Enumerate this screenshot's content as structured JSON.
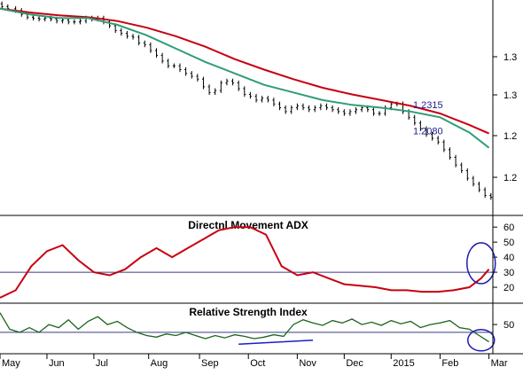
{
  "chart_data": [
    {
      "type": "line",
      "panel": "price",
      "title": "",
      "y_axis": {
        "ticks": [
          "1.3",
          "1.3",
          "1.2",
          "1.2"
        ],
        "range": [
          1.12,
          1.345
        ]
      },
      "series": [
        {
          "kind": "candlestick",
          "color": "#000000",
          "x": [
            1,
            4,
            8,
            11,
            14,
            17,
            20,
            23,
            26,
            29,
            32,
            35,
            38,
            41,
            44,
            47,
            50,
            53,
            56,
            59,
            62,
            65,
            68,
            71,
            74,
            77,
            80,
            83,
            86,
            89,
            92,
            95,
            98,
            101,
            104,
            107,
            110,
            113,
            116,
            119,
            122,
            125,
            128,
            131,
            134,
            137,
            140,
            143,
            146,
            149,
            152,
            155,
            158,
            161,
            164,
            167,
            170,
            173,
            176,
            179,
            182,
            185,
            188,
            191,
            194,
            197,
            200,
            203,
            206,
            209,
            212,
            215,
            218,
            221,
            224,
            227,
            230,
            233,
            236,
            239,
            242,
            245,
            248,
            251
          ],
          "close": [
            1.338,
            1.336,
            1.334,
            1.33,
            1.327,
            1.326,
            1.325,
            1.326,
            1.325,
            1.323,
            1.324,
            1.322,
            1.322,
            1.323,
            1.326,
            1.325,
            1.326,
            1.322,
            1.318,
            1.313,
            1.31,
            1.307,
            1.306,
            1.3,
            1.298,
            1.292,
            1.287,
            1.281,
            1.276,
            1.276,
            1.272,
            1.268,
            1.265,
            1.262,
            1.254,
            1.248,
            1.25,
            1.258,
            1.26,
            1.258,
            1.252,
            1.246,
            1.244,
            1.24,
            1.242,
            1.24,
            1.236,
            1.232,
            1.228,
            1.232,
            1.234,
            1.232,
            1.23,
            1.232,
            1.234,
            1.232,
            1.23,
            1.228,
            1.226,
            1.228,
            1.23,
            1.232,
            1.23,
            1.226,
            1.226,
            1.232,
            1.236,
            1.236,
            1.228,
            1.222,
            1.216,
            1.21,
            1.204,
            1.2,
            1.196,
            1.188,
            1.18,
            1.172,
            1.166,
            1.158,
            1.152,
            1.146,
            1.14,
            1.138
          ]
        },
        {
          "name": "",
          "color": "#c8000f",
          "x": [
            0,
            15,
            30,
            45,
            60,
            75,
            90,
            105,
            120,
            135,
            150,
            165,
            180,
            195,
            210,
            225,
            240,
            250
          ],
          "y": [
            1.336,
            1.332,
            1.329,
            1.327,
            1.323,
            1.316,
            1.307,
            1.296,
            1.283,
            1.272,
            1.262,
            1.253,
            1.246,
            1.24,
            1.234,
            1.226,
            1.214,
            1.205
          ]
        },
        {
          "name": "",
          "color": "#2e9e78",
          "x": [
            0,
            15,
            30,
            45,
            60,
            75,
            90,
            105,
            120,
            135,
            150,
            165,
            180,
            195,
            210,
            225,
            240,
            250
          ],
          "y": [
            1.336,
            1.33,
            1.326,
            1.326,
            1.319,
            1.308,
            1.294,
            1.28,
            1.268,
            1.256,
            1.248,
            1.24,
            1.235,
            1.232,
            1.228,
            1.222,
            1.206,
            1.19
          ]
        }
      ],
      "annotations": [
        {
          "text": "1.2315",
          "color": "#1c1c8c",
          "y": 1.2315
        },
        {
          "text": "1.2080",
          "color": "#1c1c8c",
          "y": 1.208
        }
      ]
    },
    {
      "type": "line",
      "panel": "adx",
      "title": "Directnl Movement ADX",
      "y_axis": {
        "ticks": [
          "60",
          "50",
          "40",
          "30",
          "20"
        ],
        "range": [
          10,
          66
        ]
      },
      "reference_line": {
        "value": 30,
        "color": "#3a3a8c"
      },
      "series": [
        {
          "name": "",
          "color": "#c8000f",
          "x": [
            0,
            8,
            16,
            24,
            32,
            40,
            48,
            56,
            64,
            72,
            80,
            88,
            96,
            104,
            112,
            120,
            128,
            136,
            144,
            152,
            160,
            168,
            176,
            184,
            192,
            200,
            208,
            216,
            224,
            232,
            240,
            246,
            250
          ],
          "y": [
            13,
            18,
            34,
            44,
            48,
            38,
            30,
            28,
            32,
            40,
            46,
            40,
            46,
            52,
            58,
            60,
            60,
            55,
            34,
            28,
            30,
            26,
            22,
            21,
            20,
            18,
            18,
            17,
            17,
            18,
            20,
            26,
            32
          ]
        }
      ],
      "annotations": [
        {
          "shape": "ellipse",
          "color": "#1c1cb4",
          "x": 246,
          "y": 36
        }
      ]
    },
    {
      "type": "line",
      "panel": "rsi",
      "title": "Relative Strength Index",
      "y_axis": {
        "ticks": [
          "50"
        ],
        "range": [
          14,
          76
        ]
      },
      "reference_line": {
        "value": 40,
        "color": "#3a3a8c"
      },
      "series": [
        {
          "name": "",
          "color": "#1c641c",
          "x": [
            0,
            5,
            10,
            15,
            20,
            25,
            30,
            35,
            40,
            45,
            50,
            55,
            60,
            65,
            70,
            75,
            80,
            85,
            90,
            95,
            100,
            105,
            110,
            115,
            120,
            125,
            130,
            135,
            140,
            145,
            150,
            155,
            160,
            165,
            170,
            175,
            180,
            185,
            190,
            195,
            200,
            205,
            210,
            215,
            220,
            225,
            230,
            235,
            240,
            245,
            250
          ],
          "y": [
            65,
            44,
            40,
            46,
            40,
            50,
            46,
            56,
            44,
            54,
            60,
            50,
            54,
            46,
            40,
            36,
            34,
            38,
            36,
            40,
            36,
            32,
            36,
            33,
            37,
            35,
            32,
            34,
            37,
            35,
            50,
            56,
            52,
            49,
            55,
            52,
            57,
            50,
            53,
            49,
            55,
            51,
            54,
            46,
            50,
            52,
            55,
            46,
            44,
            36,
            28
          ]
        }
      ],
      "trendline": {
        "color": "#1c1cc8",
        "points": [
          [
            122,
            25
          ],
          [
            160,
            30
          ]
        ]
      },
      "annotations": [
        {
          "shape": "ellipse",
          "color": "#1c1cb4",
          "x": 246,
          "y": 30
        }
      ]
    }
  ],
  "x_axis": {
    "labels": [
      "May",
      "Jun",
      "Jul",
      "Aug",
      "Sep",
      "Oct",
      "Nov",
      "Dec",
      "2015",
      "Feb",
      "Mar"
    ],
    "positions": [
      0,
      24,
      48,
      76,
      102,
      127,
      152,
      176,
      200,
      225,
      250
    ],
    "range": [
      0,
      252
    ]
  }
}
